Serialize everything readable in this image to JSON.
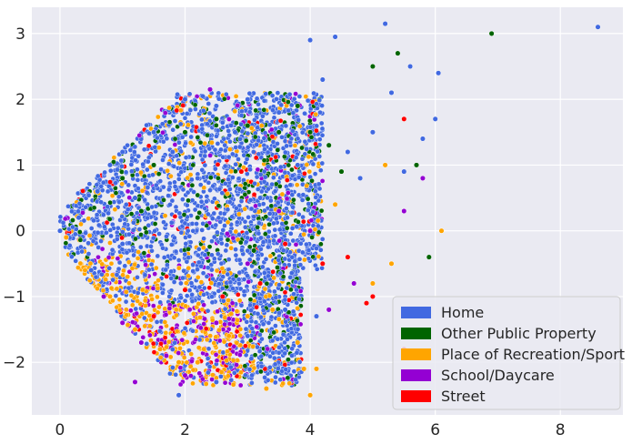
{
  "chart_data": {
    "type": "scatter",
    "title": "",
    "xlabel": "",
    "ylabel": "",
    "xlim": [
      -0.45,
      9.0
    ],
    "ylim": [
      -2.8,
      3.4
    ],
    "xticks": [
      0,
      2,
      4,
      6,
      8
    ],
    "yticks": [
      -2,
      -1,
      0,
      1,
      2,
      3
    ],
    "xtick_labels": [
      "0",
      "2",
      "4",
      "6",
      "8"
    ],
    "ytick_labels": [
      "−2",
      "−1",
      "0",
      "1",
      "2",
      "3"
    ],
    "grid": true,
    "legend_placement": "lower-right",
    "background": "#eaeaf2",
    "series": [
      {
        "name": "Home",
        "color": "#4169e1",
        "points": [
          [
            0.0,
            0.0
          ],
          [
            0.3,
            0.2
          ],
          [
            0.6,
            0.6
          ],
          [
            0.8,
            1.0
          ],
          [
            1.0,
            1.2
          ],
          [
            1.2,
            0.5
          ],
          [
            1.5,
            1.5
          ],
          [
            1.8,
            1.2
          ],
          [
            2.0,
            2.0
          ],
          [
            2.2,
            0.8
          ],
          [
            2.5,
            1.9
          ],
          [
            2.8,
            1.5
          ],
          [
            3.0,
            2.0
          ],
          [
            3.2,
            0.5
          ],
          [
            3.5,
            1.8
          ],
          [
            3.8,
            1.0
          ],
          [
            4.0,
            2.9
          ],
          [
            4.2,
            2.3
          ],
          [
            4.4,
            2.95
          ],
          [
            4.6,
            1.2
          ],
          [
            4.8,
            0.8
          ],
          [
            5.0,
            1.5
          ],
          [
            5.2,
            3.15
          ],
          [
            5.3,
            2.1
          ],
          [
            5.5,
            0.9
          ],
          [
            5.6,
            2.5
          ],
          [
            5.8,
            1.4
          ],
          [
            6.0,
            1.7
          ],
          [
            6.05,
            2.4
          ],
          [
            8.6,
            3.1
          ],
          [
            1.9,
            -2.5
          ],
          [
            2.5,
            -2.3
          ],
          [
            3.0,
            -1.6
          ],
          [
            3.6,
            -1.2
          ],
          [
            4.1,
            -1.3
          ],
          [
            1.0,
            -0.2
          ],
          [
            0.5,
            -0.6
          ]
        ]
      },
      {
        "name": "Other Public Property",
        "color": "#006400",
        "points": [
          [
            1.0,
            0.8
          ],
          [
            1.5,
            1.0
          ],
          [
            2.0,
            1.5
          ],
          [
            2.5,
            1.7
          ],
          [
            3.0,
            1.6
          ],
          [
            3.5,
            1.5
          ],
          [
            3.8,
            1.9
          ],
          [
            4.0,
            1.5
          ],
          [
            4.3,
            1.3
          ],
          [
            4.5,
            0.9
          ],
          [
            5.0,
            2.5
          ],
          [
            5.4,
            2.7
          ],
          [
            5.7,
            1.0
          ],
          [
            5.9,
            -0.4
          ],
          [
            6.9,
            3.0
          ],
          [
            2.2,
            0.2
          ],
          [
            1.3,
            0.3
          ],
          [
            3.1,
            -0.3
          ]
        ]
      },
      {
        "name": "Place of Recreation/Sport",
        "color": "#ffa500",
        "points": [
          [
            0.1,
            -0.1
          ],
          [
            0.4,
            -0.6
          ],
          [
            0.8,
            -1.0
          ],
          [
            1.2,
            -1.5
          ],
          [
            1.6,
            -1.8
          ],
          [
            1.9,
            -2.0
          ],
          [
            2.3,
            -1.8
          ],
          [
            2.7,
            -1.6
          ],
          [
            3.0,
            -1.3
          ],
          [
            3.4,
            -1.2
          ],
          [
            3.8,
            -1.7
          ],
          [
            4.0,
            -2.5
          ],
          [
            4.1,
            -2.1
          ],
          [
            5.0,
            -0.8
          ],
          [
            5.3,
            -0.5
          ],
          [
            6.1,
            0.0
          ],
          [
            5.2,
            1.0
          ],
          [
            4.4,
            0.4
          ],
          [
            3.9,
            -2.1
          ],
          [
            3.3,
            -2.4
          ],
          [
            2.2,
            -2.0
          ]
        ]
      },
      {
        "name": "School/Daycare",
        "color": "#9400d3",
        "points": [
          [
            0.7,
            -1.0
          ],
          [
            1.0,
            -1.4
          ],
          [
            1.3,
            -1.7
          ],
          [
            1.7,
            -1.9
          ],
          [
            2.0,
            -2.2
          ],
          [
            2.5,
            -1.4
          ],
          [
            3.0,
            -0.5
          ],
          [
            3.5,
            0.3
          ],
          [
            4.0,
            0.0
          ],
          [
            4.3,
            -1.2
          ],
          [
            4.7,
            -0.8
          ],
          [
            5.5,
            0.3
          ],
          [
            5.8,
            0.8
          ],
          [
            2.4,
            2.15
          ],
          [
            1.2,
            -2.3
          ]
        ]
      },
      {
        "name": "Street",
        "color": "#ff0000",
        "points": [
          [
            1.5,
            -1.3
          ],
          [
            2.0,
            -0.9
          ],
          [
            2.6,
            -1.0
          ],
          [
            3.2,
            -0.8
          ],
          [
            3.6,
            -0.2
          ],
          [
            4.2,
            -0.5
          ],
          [
            4.6,
            -0.4
          ],
          [
            5.0,
            -1.0
          ],
          [
            5.5,
            -1.8
          ],
          [
            5.5,
            1.7
          ],
          [
            4.9,
            -1.1
          ],
          [
            2.9,
            0.9
          ]
        ]
      }
    ]
  }
}
